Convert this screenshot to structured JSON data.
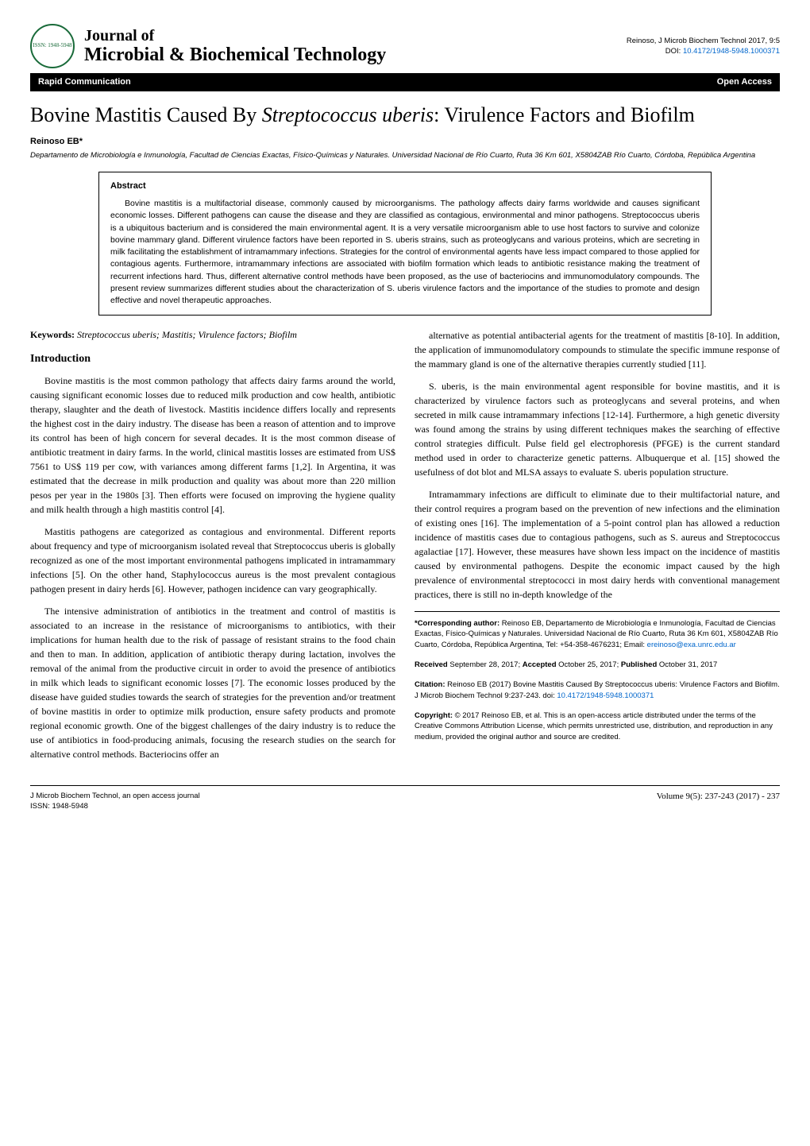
{
  "header": {
    "logo_text": "Microbial & Biochemical Technology",
    "logo_issn": "ISSN: 1948-5948",
    "journal_of": "Journal of",
    "journal_name": "Microbial & Biochemical Technology",
    "citation_short": "Reinoso, J Microb Biochem Technol 2017, 9:5",
    "doi_label": "DOI:",
    "doi": "10.4172/1948-5948.1000371"
  },
  "bar": {
    "left": "Rapid Communication",
    "right": "Open Access"
  },
  "article": {
    "title_pre": "Bovine Mastitis Caused By ",
    "title_italic": "Streptococcus uberis",
    "title_post": ": Virulence Factors and Biofilm",
    "authors": "Reinoso EB*",
    "affiliation": "Departamento de Microbiología e Inmunología, Facultad de Ciencias Exactas, Físico-Químicas y Naturales. Universidad Nacional de Río Cuarto, Ruta 36 Km 601, X5804ZAB Río Cuarto, Córdoba, República Argentina"
  },
  "abstract": {
    "heading": "Abstract",
    "text": "Bovine mastitis is a multifactorial disease, commonly caused by microorganisms. The pathology affects dairy farms worldwide and causes significant economic losses. Different pathogens can cause the disease and they are classified as contagious, environmental and minor pathogens. Streptococcus uberis is a ubiquitous bacterium and is considered the main environmental agent. It is a very versatile microorganism able to use host factors to survive and colonize bovine mammary gland. Different virulence factors have been reported in S. uberis strains, such as proteoglycans and various proteins, which are secreting in milk facilitating the establishment of intramammary infections. Strategies for the control of environmental agents have less impact compared to those applied for contagious agents. Furthermore, intramammary infections are associated with biofilm formation which leads to antibiotic resistance making the treatment of recurrent infections hard. Thus, different alternative control methods have been proposed, as the use of bacteriocins and immunomodulatory compounds. The present review summarizes different studies about the characterization of S. uberis virulence factors and the importance of the studies to promote and design effective and novel therapeutic approaches."
  },
  "keywords": {
    "label": "Keywords:",
    "text": " Streptococcus uberis; Mastitis; Virulence factors; Biofilm"
  },
  "sections": {
    "introduction_heading": "Introduction"
  },
  "body": {
    "left_p1": "Bovine mastitis is the most common pathology that affects dairy farms around the world, causing significant economic losses due to reduced milk production and cow health, antibiotic therapy, slaughter and the death of livestock. Mastitis incidence differs locally and represents the highest cost in the dairy industry. The disease has been a reason of attention and to improve its control has been of high concern for several decades. It is the most common disease of antibiotic treatment in dairy farms. In the world, clinical mastitis losses are estimated from US$ 7561 to US$ 119 per cow, with variances among different farms [1,2]. In Argentina, it was estimated that the decrease in milk production and quality was about more than 220 million pesos per year in the 1980s [3]. Then efforts were focused on improving the hygiene quality and milk health through a high mastitis control [4].",
    "left_p2": "Mastitis pathogens are categorized as contagious and environmental. Different reports about frequency and type of microorganism isolated reveal that Streptococcus uberis is globally recognized as one of the most important environmental pathogens implicated in intramammary infections [5]. On the other hand, Staphylococcus aureus is the most prevalent contagious pathogen present in dairy herds [6]. However, pathogen incidence can vary geographically.",
    "left_p3": "The intensive administration of antibiotics in the treatment and control of mastitis is associated to an increase in the resistance of microorganisms to antibiotics, with their implications for human health due to the risk of passage of resistant strains to the food chain and then to man. In addition, application of antibiotic therapy during lactation, involves the removal of the animal from the productive circuit in order to avoid the presence of antibiotics in milk which leads to significant economic losses [7]. The economic losses produced by the disease have guided studies towards the search of strategies for the prevention and/or treatment of bovine mastitis in order to optimize milk production, ensure safety products and promote regional economic growth. One of the biggest challenges of the dairy industry is to reduce the use of antibiotics in food-producing animals, focusing the research studies on the search for alternative control methods. Bacteriocins offer an",
    "right_p1": "alternative as potential antibacterial agents for the treatment of mastitis [8-10]. In addition, the application of immunomodulatory compounds to stimulate the specific immune response of the mammary gland is one of the alternative therapies currently studied [11].",
    "right_p2": "S. uberis, is the main environmental agent responsible for bovine mastitis, and it is characterized by virulence factors such as proteoglycans and several proteins, and when secreted in milk cause intramammary infections [12-14]. Furthermore, a high genetic diversity was found among the strains by using different techniques makes the searching of effective control strategies difficult. Pulse field gel electrophoresis (PFGE) is the current standard method used in order to characterize genetic patterns. Albuquerque et al. [15] showed the usefulness of dot blot and MLSA assays to evaluate S. uberis population structure.",
    "right_p3": "Intramammary infections are difficult to eliminate due to their multifactorial nature, and their control requires a program based on the prevention of new infections and the elimination of existing ones [16]. The implementation of a 5-point control plan has allowed a reduction incidence of mastitis cases due to contagious pathogens, such as S. aureus and Streptococcus agalactiae [17]. However, these measures have shown less impact on the incidence of mastitis caused by environmental pathogens. Despite the economic impact caused by the high prevalence of environmental streptococci in most dairy herds with conventional management practices, there is still no in-depth knowledge of the"
  },
  "info": {
    "corresponding_label": "*Corresponding author:",
    "corresponding_text": " Reinoso EB, Departamento de Microbiología e Inmunología, Facultad de Ciencias Exactas, Físico-Químicas y Naturales. Universidad Nacional de Río Cuarto, Ruta 36 Km 601, X5804ZAB Río Cuarto, Córdoba, República Argentina, Tel: +54-358-4676231; Email: ",
    "email": "ereinoso@exa.unrc.edu.ar",
    "received_label": "Received",
    "received_date": " September 28, 2017; ",
    "accepted_label": "Accepted",
    "accepted_date": " October 25, 2017; ",
    "published_label": "Published",
    "published_date": " October 31, 2017",
    "citation_label": "Citation:",
    "citation_text": " Reinoso EB (2017) Bovine Mastitis Caused By Streptococcus uberis: Virulence Factors and Biofilm. J Microb Biochem Technol 9:237-243. doi: ",
    "citation_doi": "10.4172/1948-5948.1000371",
    "copyright_label": "Copyright:",
    "copyright_text": " © 2017 Reinoso EB, et al. This is an open-access article distributed under the terms of the Creative Commons Attribution License, which permits unrestricted use, distribution, and reproduction in any medium, provided the original author and source are credited."
  },
  "footer": {
    "left_line1": "J Microb Biochem Technol, an open access journal",
    "left_line2": "ISSN: 1948-5948",
    "right": "Volume 9(5): 237-243 (2017) - 237"
  },
  "colors": {
    "link": "#0066cc",
    "logo_green": "#1a6b3a",
    "bar_bg": "#000000",
    "bar_fg": "#ffffff"
  }
}
